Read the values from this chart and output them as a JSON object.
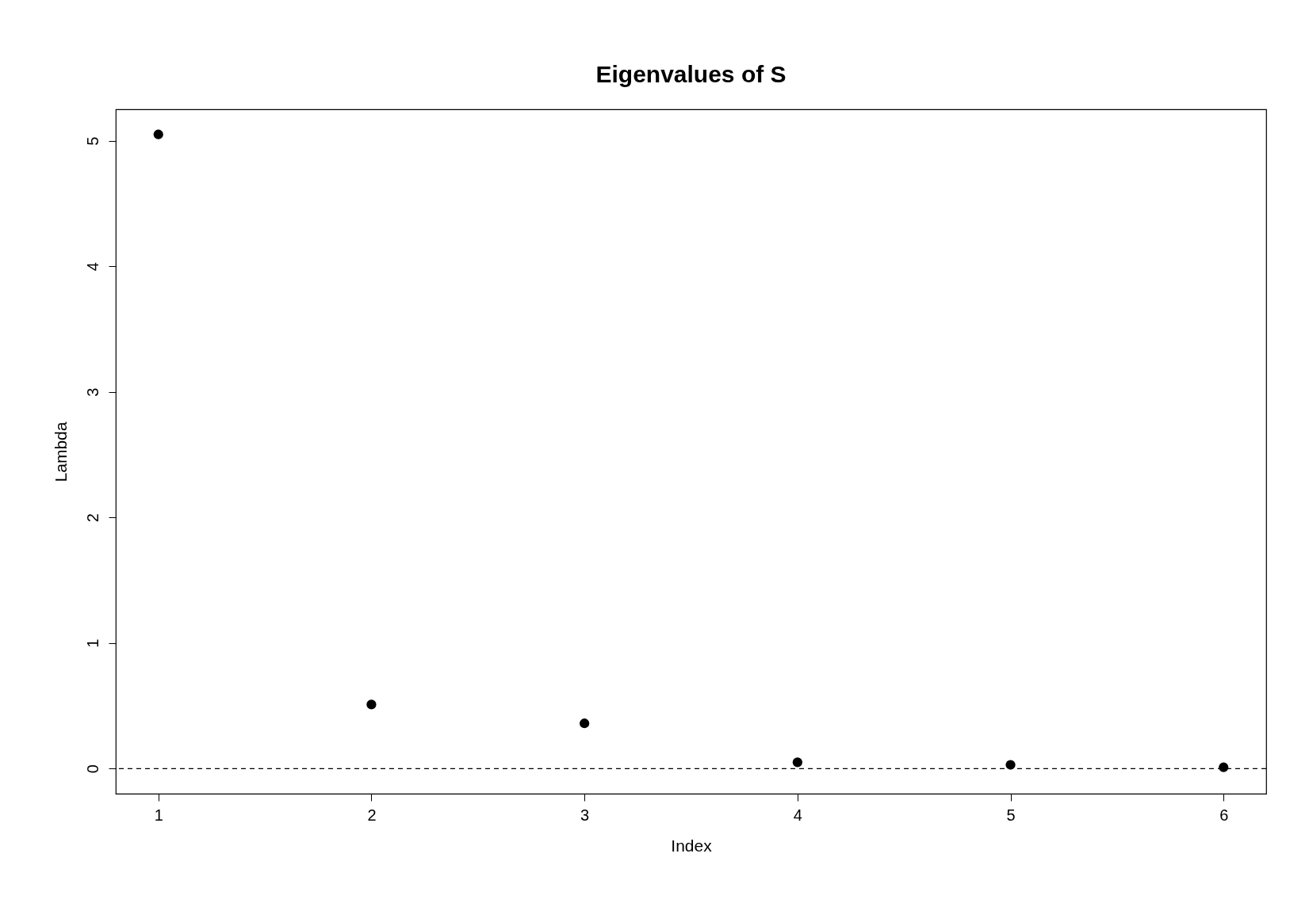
{
  "chart_data": {
    "type": "scatter",
    "title": "Eigenvalues of S",
    "xlabel": "Index",
    "ylabel": "Lambda",
    "x": [
      1,
      2,
      3,
      4,
      5,
      6
    ],
    "series": [
      {
        "color": "#000000",
        "values": [
          5.05,
          0.51,
          0.36,
          0.05,
          0.03,
          0.01
        ]
      }
    ],
    "xlim": [
      0.8,
      6.2
    ],
    "ylim": [
      -0.2,
      5.25
    ],
    "xticks": [
      1,
      2,
      3,
      4,
      5,
      6
    ],
    "yticks": [
      0,
      1,
      2,
      3,
      4,
      5
    ],
    "ref_lines": [
      {
        "axis": "y",
        "value": 0,
        "color": "#000000",
        "line_style": "dashed"
      }
    ],
    "marker": "circle",
    "grid": false
  }
}
